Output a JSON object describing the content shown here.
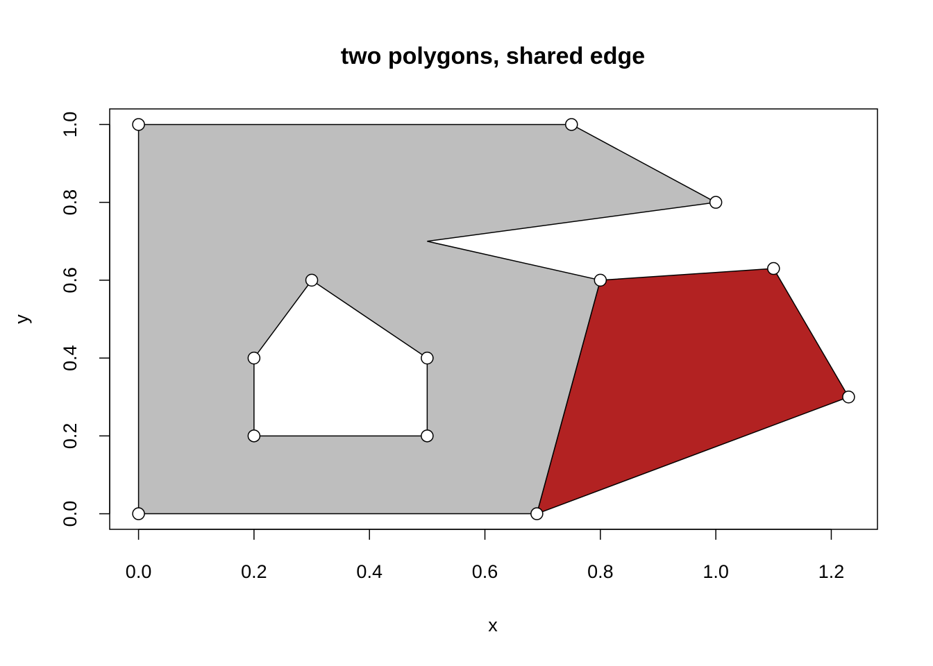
{
  "chart_data": {
    "type": "polygon",
    "title": "two polygons, shared edge",
    "xlabel": "x",
    "ylabel": "y",
    "xlim": [
      -0.05,
      1.28
    ],
    "ylim": [
      -0.04,
      1.04
    ],
    "xticks": [
      0.0,
      0.2,
      0.4,
      0.6,
      0.8,
      1.0,
      1.2
    ],
    "yticks": [
      0.0,
      0.2,
      0.4,
      0.6,
      0.8,
      1.0
    ],
    "xtick_labels": [
      "0.0",
      "0.2",
      "0.4",
      "0.6",
      "0.8",
      "1.0",
      "1.2"
    ],
    "ytick_labels": [
      "0.0",
      "0.2",
      "0.4",
      "0.6",
      "0.8",
      "1.0"
    ],
    "polygons": [
      {
        "fill": "#bebebe",
        "outer": [
          [
            0,
            0
          ],
          [
            0.69,
            0
          ],
          [
            0.8,
            0.6
          ],
          [
            0.5,
            0.7
          ],
          [
            1.0,
            0.8
          ],
          [
            0.75,
            1.0
          ],
          [
            0,
            1.0
          ]
        ],
        "hole": [
          [
            0.2,
            0.2
          ],
          [
            0.5,
            0.2
          ],
          [
            0.5,
            0.4
          ],
          [
            0.3,
            0.6
          ],
          [
            0.2,
            0.4
          ]
        ]
      },
      {
        "fill": "#b22222",
        "outer": [
          [
            0.69,
            0
          ],
          [
            1.23,
            0.3
          ],
          [
            1.1,
            0.63
          ],
          [
            0.8,
            0.6
          ]
        ]
      }
    ],
    "points": [
      [
        0,
        0
      ],
      [
        0.69,
        0
      ],
      [
        0.8,
        0.6
      ],
      [
        1.0,
        0.8
      ],
      [
        0.75,
        1.0
      ],
      [
        0,
        1.0
      ],
      [
        0.2,
        0.2
      ],
      [
        0.5,
        0.2
      ],
      [
        0.5,
        0.4
      ],
      [
        0.3,
        0.6
      ],
      [
        0.2,
        0.4
      ],
      [
        1.23,
        0.3
      ],
      [
        1.1,
        0.63
      ]
    ],
    "grid": false,
    "legend": "none"
  }
}
